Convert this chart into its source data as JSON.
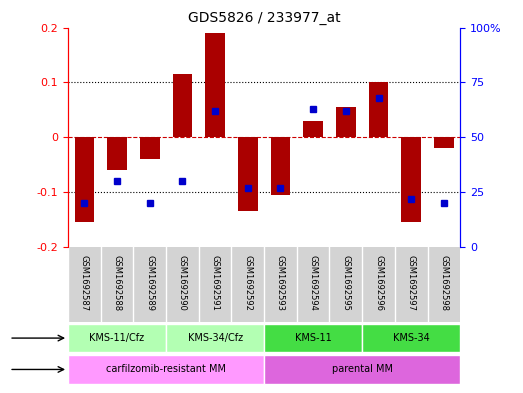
{
  "title": "GDS5826 / 233977_at",
  "samples": [
    "GSM1692587",
    "GSM1692588",
    "GSM1692589",
    "GSM1692590",
    "GSM1692591",
    "GSM1692592",
    "GSM1692593",
    "GSM1692594",
    "GSM1692595",
    "GSM1692596",
    "GSM1692597",
    "GSM1692598"
  ],
  "transformed_count": [
    -0.155,
    -0.06,
    -0.04,
    0.115,
    0.19,
    -0.135,
    -0.105,
    0.03,
    0.055,
    0.1,
    -0.155,
    -0.02
  ],
  "percentile_rank": [
    20,
    30,
    20,
    30,
    62,
    27,
    27,
    63,
    62,
    68,
    22,
    20
  ],
  "cell_line_groups": [
    {
      "label": "KMS-11/Cfz",
      "start": 0,
      "end": 3,
      "color": "#90ee90"
    },
    {
      "label": "KMS-34/Cfz",
      "start": 3,
      "end": 6,
      "color": "#90ee90"
    },
    {
      "label": "KMS-11",
      "start": 6,
      "end": 9,
      "color": "#00cc44"
    },
    {
      "label": "KMS-34",
      "start": 9,
      "end": 12,
      "color": "#00cc44"
    }
  ],
  "cell_type_groups": [
    {
      "label": "carfilzomib-resistant MM",
      "start": 0,
      "end": 6,
      "color": "#ff99ff"
    },
    {
      "label": "parental MM",
      "start": 6,
      "end": 12,
      "color": "#ff99ff"
    }
  ],
  "ylim_left": [
    -0.2,
    0.2
  ],
  "ylim_right": [
    0,
    100
  ],
  "bar_color": "#aa0000",
  "percentile_color": "#0000cc",
  "grid_color": "#000000",
  "zero_line_color": "#cc0000",
  "background_plot": "#ffffff",
  "background_sample": "#d3d3d3"
}
